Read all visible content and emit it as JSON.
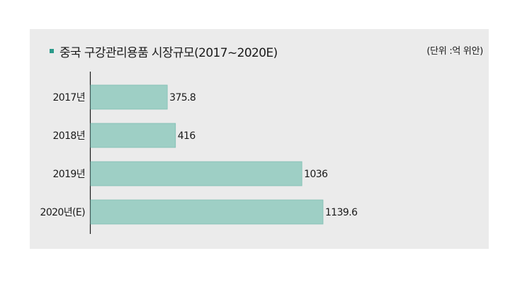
{
  "title": "중국 구강관리용품 시장규모(2017~2020E)",
  "unit_note": "(단위 :억 위안)",
  "bar_color": "#9ecfc5",
  "bar_edge_color": "#7fbfb3",
  "marker_color": "#2b9a8a",
  "chart_data": {
    "type": "bar",
    "orientation": "horizontal",
    "title": "중국 구강관리용품 시장규모(2017~2020E)",
    "unit": "(단위 :억 위안)",
    "categories": [
      "2017년",
      "2018년",
      "2019년",
      "2020년(E)"
    ],
    "values": [
      375.8,
      416,
      1036,
      1139.6
    ],
    "value_labels": [
      "375.8",
      "416",
      "1036",
      "1139.6"
    ],
    "xlim": [
      0,
      1139.6
    ],
    "grid": false,
    "legend": "none"
  }
}
